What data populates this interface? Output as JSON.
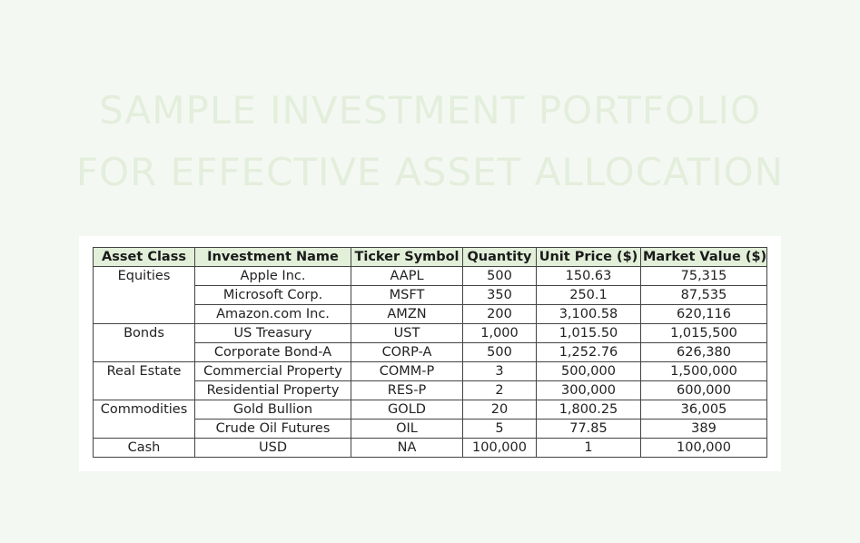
{
  "title": {
    "line1": "SAMPLE INVESTMENT PORTFOLIO",
    "line2": "FOR EFFECTIVE ASSET ALLOCATION"
  },
  "table": {
    "headers": [
      "Asset Class",
      "Investment Name",
      "Ticker Symbol",
      "Quantity",
      "Unit Price ($)",
      "Market Value ($)"
    ],
    "rows": [
      {
        "asset_class": "Equities",
        "name": "Apple Inc.",
        "ticker": "AAPL",
        "quantity": "500",
        "unit_price": "150.63",
        "market_value": "75,315"
      },
      {
        "asset_class": "",
        "name": "Microsoft Corp.",
        "ticker": "MSFT",
        "quantity": "350",
        "unit_price": "250.1",
        "market_value": "87,535"
      },
      {
        "asset_class": "",
        "name": "Amazon.com Inc.",
        "ticker": "AMZN",
        "quantity": "200",
        "unit_price": "3,100.58",
        "market_value": "620,116"
      },
      {
        "asset_class": "Bonds",
        "name": "US Treasury",
        "ticker": "UST",
        "quantity": "1,000",
        "unit_price": "1,015.50",
        "market_value": "1,015,500"
      },
      {
        "asset_class": "",
        "name": "Corporate Bond-A",
        "ticker": "CORP-A",
        "quantity": "500",
        "unit_price": "1,252.76",
        "market_value": "626,380"
      },
      {
        "asset_class": "Real Estate",
        "name": "Commercial Property",
        "ticker": "COMM-P",
        "quantity": "3",
        "unit_price": "500,000",
        "market_value": "1,500,000"
      },
      {
        "asset_class": "",
        "name": "Residential Property",
        "ticker": "RES-P",
        "quantity": "2",
        "unit_price": "300,000",
        "market_value": "600,000"
      },
      {
        "asset_class": "Commodities",
        "name": "Gold Bullion",
        "ticker": "GOLD",
        "quantity": "20",
        "unit_price": "1,800.25",
        "market_value": "36,005"
      },
      {
        "asset_class": "",
        "name": "Crude Oil Futures",
        "ticker": "OIL",
        "quantity": "5",
        "unit_price": "77.85",
        "market_value": "389"
      },
      {
        "asset_class": "Cash",
        "name": "USD",
        "ticker": "NA",
        "quantity": "100,000",
        "unit_price": "1",
        "market_value": "100,000"
      }
    ]
  }
}
